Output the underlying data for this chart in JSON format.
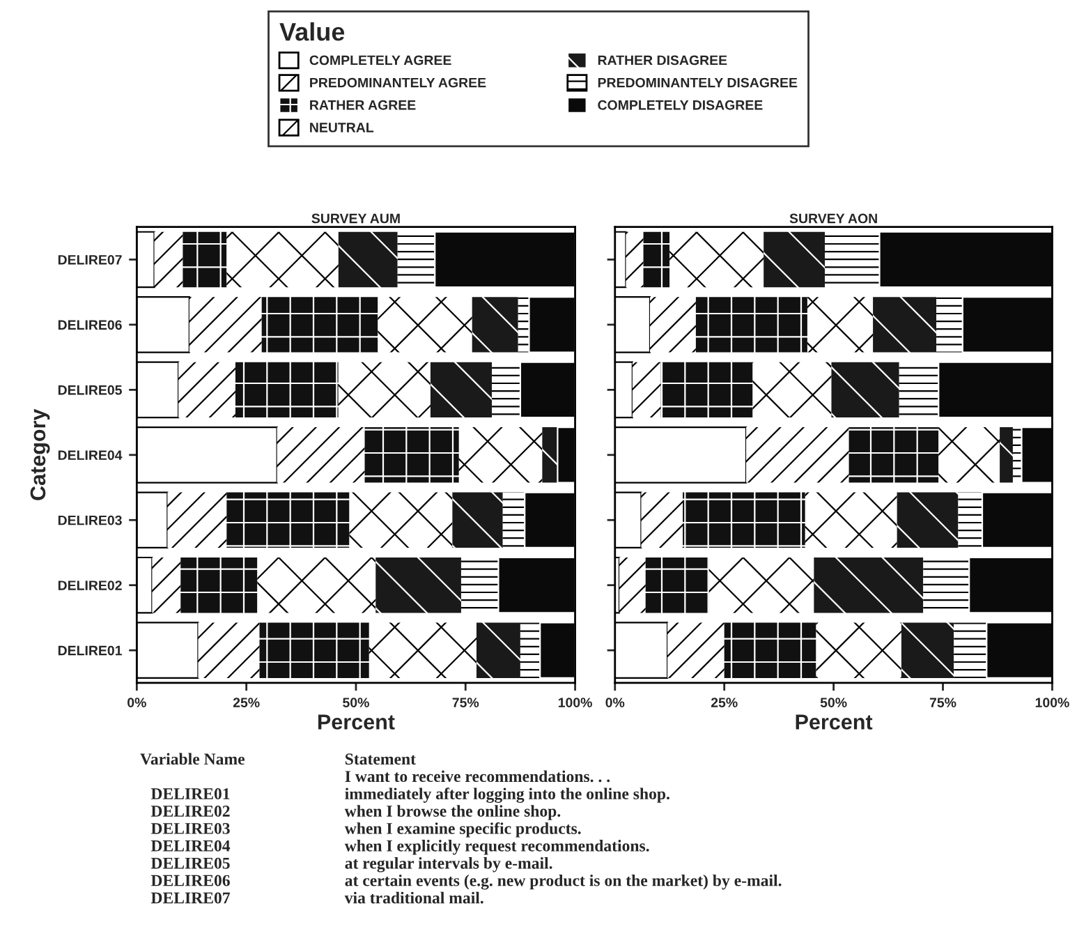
{
  "chart_data": [
    {
      "type": "bar",
      "orientation": "horizontal",
      "stacked": true,
      "title": "SURVEY AUM",
      "xlabel": "Percent",
      "ylabel": "Category",
      "legend": "top",
      "legend_title": "Value",
      "categories": [
        "DELIRE07",
        "DELIRE06",
        "DELIRE05",
        "DELIRE04",
        "DELIRE03",
        "DELIRE02",
        "DELIRE01"
      ],
      "xlim": [
        0,
        100
      ],
      "xticks": [
        {
          "value": 0,
          "label": "0%"
        },
        {
          "value": 25,
          "label": "25%"
        },
        {
          "value": 50,
          "label": "50%"
        },
        {
          "value": 75,
          "label": "75%"
        },
        {
          "value": 100,
          "label": "100%"
        }
      ],
      "series": [
        {
          "name": "COMPLETELY AGREE",
          "color": "#ffffff",
          "values": [
            4,
            12,
            9.5,
            32,
            7,
            3.5,
            14
          ]
        },
        {
          "name": "PREDOMINANTELY AGREE",
          "color": "#ffffff",
          "values": [
            6.5,
            16.5,
            13,
            20,
            13.5,
            6.5,
            14
          ]
        },
        {
          "name": "RATHER AGREE",
          "color": "#111111",
          "values": [
            10,
            26.5,
            23.5,
            21.5,
            28,
            17.5,
            25
          ]
        },
        {
          "name": "NEUTRAL",
          "color": "#ffffff",
          "values": [
            25.5,
            21.5,
            21,
            19,
            23.5,
            27,
            24.5
          ]
        },
        {
          "name": "RATHER DISAGREE",
          "color": "#1a1a1a",
          "values": [
            13.5,
            10.5,
            14,
            3.5,
            11.5,
            19.5,
            10
          ]
        },
        {
          "name": "PREDOMINANTELY DISAGREE",
          "color": "#ffffff",
          "values": [
            8.5,
            2.5,
            6.5,
            0,
            5,
            8.5,
            4.5
          ]
        },
        {
          "name": "COMPLETELY DISAGREE",
          "color": "#0a0a0a",
          "values": [
            32,
            10.5,
            12.5,
            4,
            11.5,
            17.5,
            8
          ]
        }
      ],
      "annotations": [
        "Variable Name",
        "Statement",
        "I want to receive recommendations. . .",
        "DELIRE01",
        "immediately after logging into the online shop.",
        "DELIRE02",
        "when I browse the online shop.",
        "DELIRE03",
        "when I examine specific products.",
        "DELIRE04",
        "when I explicitly request recommendations.",
        "DELIRE05",
        "at regular intervals by e-mail.",
        "DELIRE06",
        "at certain events (e.g. new product is on the market) by e-mail.",
        "DELIRE07",
        "via traditional mail."
      ]
    },
    {
      "type": "bar",
      "orientation": "horizontal",
      "stacked": true,
      "title": "SURVEY AON",
      "xlabel": "Percent",
      "tick_labels": "x",
      "categories": [
        null,
        null,
        null,
        null,
        null,
        null,
        null
      ],
      "xlim": [
        0,
        100
      ],
      "xticks": [
        {
          "value": 0,
          "label": "0%"
        },
        {
          "value": 25,
          "label": "25%"
        },
        {
          "value": 50,
          "label": "50%"
        },
        {
          "value": 75,
          "label": "75%"
        },
        {
          "value": 100,
          "label": "100%"
        }
      ],
      "series": [
        {
          "color": "#ffffff",
          "values": [
            2.5,
            8,
            4,
            30,
            6,
            1,
            12
          ]
        },
        {
          "color": "#ffffff",
          "values": [
            4,
            10.5,
            6.5,
            23.5,
            9.5,
            6,
            13
          ]
        },
        {
          "color": "#111111",
          "values": [
            6,
            25.5,
            21,
            20.5,
            28,
            14.5,
            21
          ]
        },
        {
          "color": "#ffffff",
          "values": [
            21.5,
            15,
            18,
            14,
            21,
            24,
            19.5
          ]
        },
        {
          "color": "#1a1a1a",
          "values": [
            14,
            14.5,
            15.5,
            3,
            14,
            25,
            12
          ]
        },
        {
          "color": "#ffffff",
          "values": [
            12.5,
            6,
            9,
            2,
            5.5,
            10.5,
            7.5
          ]
        },
        {
          "color": "#0a0a0a",
          "values": [
            39.5,
            20.5,
            26,
            7,
            16,
            19,
            15
          ]
        }
      ]
    }
  ]
}
